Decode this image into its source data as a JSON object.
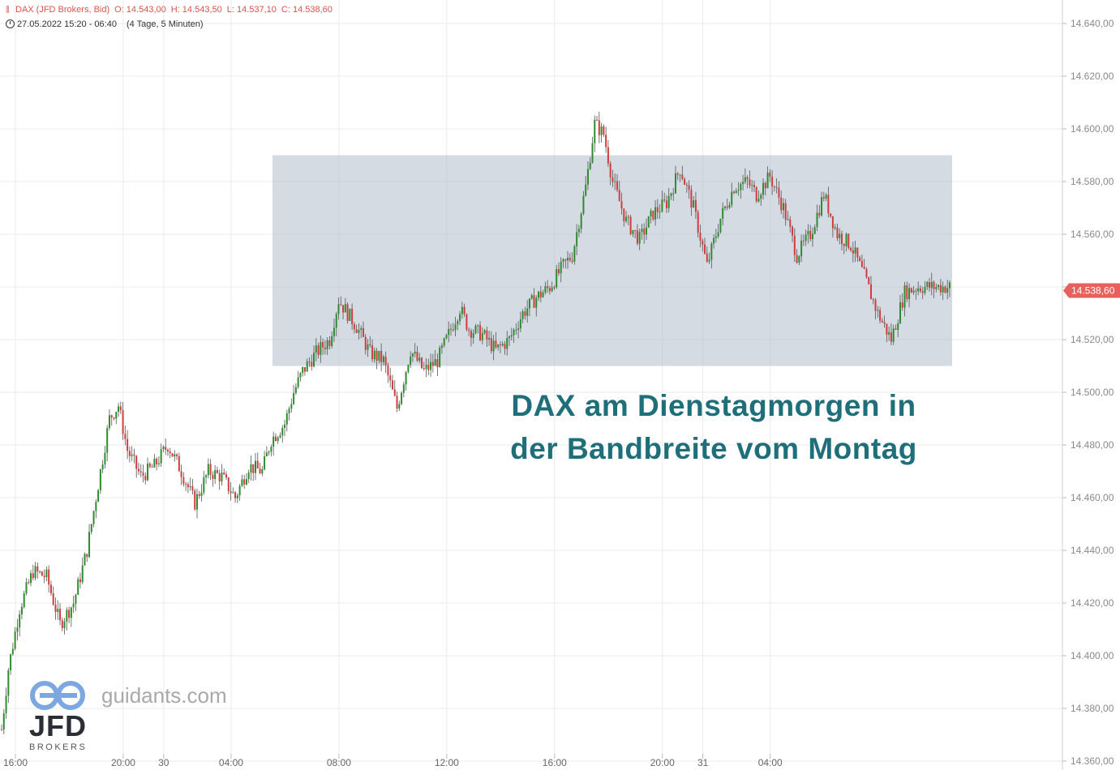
{
  "header": {
    "symbol_line": "DAX (JFD Brokers, Bid)",
    "open": "O: 14.543,00",
    "high": "H: 14.543,50",
    "low": "L: 14.537,10",
    "close": "C: 14.538,60",
    "date_line": "27.05.2022 15:20 - 06:40",
    "timeframe": "(4 Tage, 5 Minuten)"
  },
  "annotation": {
    "line1": "DAX am Dienstagmorgen in",
    "line2": "der Bandbreite vom Montag"
  },
  "watermark": {
    "site": "guidants.com",
    "jfd": "JFD",
    "brokers": "BROKERS"
  },
  "colors": {
    "up": "#2e8b2e",
    "down": "#d23c3c",
    "range_box": "#a9b7c8",
    "annotation": "#1f6f7a",
    "price_tag": "#e8605c"
  },
  "chart_data": {
    "type": "candlestick",
    "y_axis": {
      "min": 14360,
      "max": 14650,
      "ticks": [
        "14.640,00",
        "14.620,00",
        "14.600,00",
        "14.580,00",
        "14.560,00",
        "14.540,00",
        "14.520,00",
        "14.500,00",
        "14.480,00",
        "14.460,00",
        "14.440,00",
        "14.420,00",
        "14.400,00",
        "14.380,00",
        "14.360,00"
      ],
      "tick_values": [
        14640,
        14620,
        14600,
        14580,
        14560,
        14540,
        14520,
        14500,
        14480,
        14460,
        14440,
        14420,
        14400,
        14380,
        14360
      ],
      "side": "right"
    },
    "x_axis": {
      "labels": [
        "16:00",
        "20:00",
        "30",
        "04:00",
        "08:00",
        "12:00",
        "16:00",
        "20:00",
        "31",
        "04:00"
      ],
      "label_index": [
        0,
        48,
        66,
        96,
        144,
        192,
        240,
        288,
        306,
        336
      ]
    },
    "current_price": {
      "value": 14538.6,
      "label": "14.538,60"
    },
    "range_box": {
      "from_index": 122,
      "to_index": 424,
      "low": 14510,
      "high": 14590
    },
    "grid": true,
    "candle_count": 424,
    "candles_approx_path": [
      [
        0,
        14372
      ],
      [
        3,
        14395
      ],
      [
        8,
        14418
      ],
      [
        14,
        14432
      ],
      [
        20,
        14430
      ],
      [
        26,
        14412
      ],
      [
        32,
        14420
      ],
      [
        38,
        14440
      ],
      [
        44,
        14470
      ],
      [
        48,
        14490
      ],
      [
        52,
        14495
      ],
      [
        56,
        14478
      ],
      [
        62,
        14468
      ],
      [
        68,
        14472
      ],
      [
        74,
        14480
      ],
      [
        80,
        14470
      ],
      [
        86,
        14458
      ],
      [
        92,
        14470
      ],
      [
        98,
        14468
      ],
      [
        104,
        14460
      ],
      [
        110,
        14472
      ],
      [
        116,
        14470
      ],
      [
        120,
        14482
      ],
      [
        126,
        14488
      ],
      [
        130,
        14500
      ],
      [
        134,
        14508
      ],
      [
        140,
        14515
      ],
      [
        146,
        14520
      ],
      [
        150,
        14535
      ],
      [
        154,
        14530
      ],
      [
        158,
        14525
      ],
      [
        164,
        14515
      ],
      [
        170,
        14512
      ],
      [
        176,
        14494
      ],
      [
        182,
        14516
      ],
      [
        188,
        14508
      ],
      [
        194,
        14512
      ],
      [
        198,
        14520
      ],
      [
        204,
        14532
      ],
      [
        208,
        14524
      ],
      [
        214,
        14522
      ],
      [
        220,
        14516
      ],
      [
        226,
        14520
      ],
      [
        232,
        14530
      ],
      [
        238,
        14536
      ],
      [
        244,
        14540
      ],
      [
        250,
        14548
      ],
      [
        254,
        14552
      ],
      [
        260,
        14578
      ],
      [
        264,
        14602
      ],
      [
        268,
        14598
      ],
      [
        272,
        14580
      ],
      [
        278,
        14565
      ],
      [
        284,
        14558
      ],
      [
        290,
        14568
      ],
      [
        296,
        14572
      ],
      [
        302,
        14585
      ],
      [
        308,
        14570
      ],
      [
        314,
        14548
      ],
      [
        320,
        14566
      ],
      [
        326,
        14578
      ],
      [
        332,
        14580
      ],
      [
        336,
        14575
      ],
      [
        342,
        14582
      ],
      [
        348,
        14570
      ],
      [
        354,
        14552
      ],
      [
        360,
        14560
      ],
      [
        366,
        14575
      ],
      [
        372,
        14560
      ],
      [
        378,
        14556
      ],
      [
        384,
        14544
      ],
      [
        390,
        14530
      ],
      [
        396,
        14520
      ],
      [
        402,
        14538
      ],
      [
        408,
        14540
      ]
    ]
  }
}
